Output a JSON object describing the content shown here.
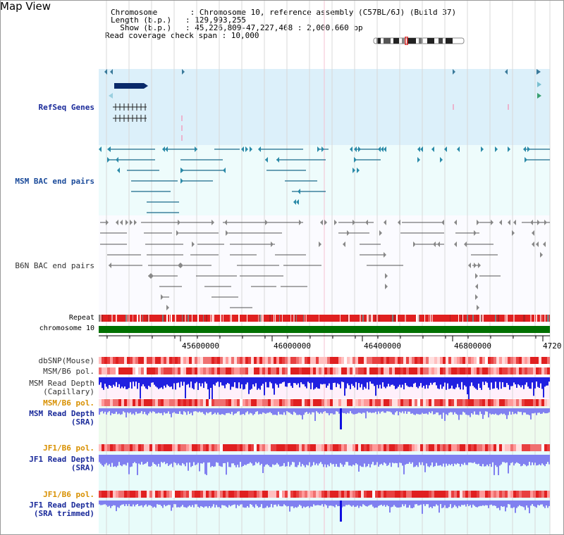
{
  "title": "Map View",
  "info": {
    "lines": [
      "Chromosome       : Chromosome 10, reference assembly (C57BL/6J) (Build 37)",
      "Length (b.p.)   : 129,993,255",
      "  Show (b.p.)   : 45,226,809-47,227,468 : 2,000,660 bp",
      "Read coverage check span : 10,000"
    ]
  },
  "tracks": {
    "refseq": "RefSeq Genes",
    "msm_bac": "MSM BAC end pairs",
    "b6n_bac": "B6N BAC end pairs",
    "repeat": "Repeat",
    "chromosome": "chromosome 10",
    "dbsnp": "dbSNP(Mouse)",
    "msm_pol": "MSM/B6 pol.",
    "msm_depth_cap_1": "MSM Read Depth",
    "msm_depth_cap_2": "(Capillary)",
    "msm_pol_2": "MSM/B6 pol.",
    "msm_depth_sra_1": "MSM Read Depth",
    "msm_depth_sra_2": "(SRA)",
    "jf1_pol": "JF1/B6 pol.",
    "jf1_depth_sra_1": "JF1 Read Depth",
    "jf1_depth_sra_2": "(SRA)",
    "jf1_pol_2": "JF1/B6 pol.",
    "jf1_depth_trim_1": "JF1 Read Depth",
    "jf1_depth_trim_2": "(SRA trimmed)"
  },
  "axis": {
    "ticks": [
      "45600000",
      "46000000",
      "46400000",
      "46800000",
      "4720"
    ]
  },
  "colors": {
    "refseq_bg": "#dcf0fa",
    "bac_bg": "#eefcfc",
    "repeat_red": "#e02020",
    "chrom_green": "#007000",
    "depth_blue": "#2020e0",
    "depth_lavender": "#8080f0",
    "label_blue": "#1a2a9a",
    "label_orange": "#d89000"
  }
}
